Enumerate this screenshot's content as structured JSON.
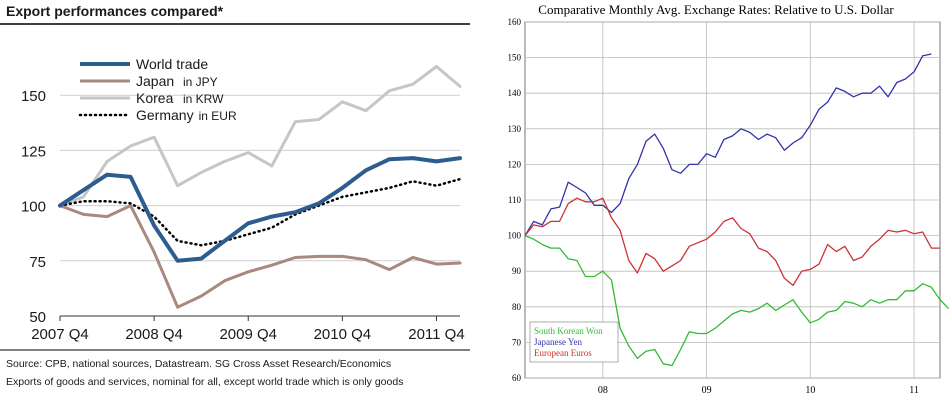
{
  "chart_data": [
    {
      "type": "line",
      "title": "Export performances compared*",
      "footnotes": [
        "Source: CPB, national sources, Datastream. SG Cross Asset Research/Economics",
        "Exports of goods and services, nominal for all, except world trade which is only goods"
      ],
      "x_tick_labels": [
        "2007 Q4",
        "2008 Q4",
        "2009 Q4",
        "2010 Q4",
        "2011 Q4"
      ],
      "x_tick_index": [
        0,
        4,
        8,
        12,
        16
      ],
      "y_ticks": [
        50,
        75,
        100,
        125,
        150
      ],
      "ylim": [
        50,
        175
      ],
      "xlim": [
        0,
        17
      ],
      "grid": "horizontal",
      "legend_position": "top-left",
      "series": [
        {
          "name": "World trade",
          "note": "",
          "color": "#2d5c8f",
          "style": "solid-thick",
          "values": [
            100,
            107,
            114,
            113,
            91,
            75,
            76,
            84,
            92,
            95,
            97,
            101,
            108,
            116,
            121,
            121.5,
            120,
            121.5
          ]
        },
        {
          "name": "Japan",
          "note": "in JPY",
          "color": "#a9887d",
          "style": "solid",
          "values": [
            100,
            96,
            95,
            100,
            79,
            54,
            59,
            66,
            70,
            73,
            76.5,
            77,
            77,
            75.5,
            71,
            76.5,
            73.5,
            74
          ]
        },
        {
          "name": "Korea",
          "note": "in KRW",
          "color": "#c4c6c8",
          "style": "solid",
          "values": [
            100,
            104,
            120,
            127,
            131,
            109,
            115,
            120,
            124,
            118,
            138,
            139,
            147,
            143,
            152,
            155,
            163,
            154
          ]
        },
        {
          "name": "Germany",
          "note": "in EUR",
          "color": "#000000",
          "style": "dotted",
          "values": [
            100,
            102,
            102,
            101,
            95,
            84,
            82,
            84,
            87,
            90,
            96,
            100,
            104,
            106,
            108,
            111,
            109,
            112
          ]
        }
      ]
    },
    {
      "type": "line",
      "title": "Comparative Monthly Avg. Exchange Rates: Relative to U.S. Dollar",
      "x_tick_labels": [
        "08",
        "09",
        "10",
        "11"
      ],
      "x_tick_index": [
        9,
        21,
        33,
        45
      ],
      "y_ticks": [
        60,
        70,
        80,
        90,
        100,
        110,
        120,
        130,
        140,
        150,
        160
      ],
      "ylim": [
        60,
        160
      ],
      "xlim": [
        0,
        48
      ],
      "grid": "both",
      "legend_position": "bottom-left",
      "series": [
        {
          "name": "South Korean Won",
          "color": "#33bb33",
          "values": [
            100,
            99,
            97.5,
            96.5,
            96.5,
            93.5,
            93,
            88.5,
            88.5,
            90,
            87.5,
            74,
            69,
            65.5,
            67.5,
            68,
            64,
            63.5,
            68,
            73,
            72.5,
            72.5,
            74,
            76,
            78,
            79,
            78.5,
            79.5,
            81,
            79,
            80.5,
            82,
            78.5,
            75.5,
            76.5,
            78.5,
            79,
            81.5,
            81,
            80,
            82,
            81,
            82,
            82,
            84.5,
            84.5,
            86.5,
            85.5,
            82,
            79.5
          ]
        },
        {
          "name": "Japanese Yen",
          "color": "#3333aa",
          "values": [
            100,
            104,
            103,
            107.5,
            108,
            115,
            113.5,
            112,
            108.5,
            108.5,
            106.5,
            109,
            116,
            120,
            126.5,
            128.5,
            124.5,
            118.5,
            117.5,
            120,
            120,
            123,
            122,
            127,
            128,
            130,
            129,
            127,
            128.5,
            127.5,
            124,
            126,
            127.5,
            131,
            135.5,
            137.5,
            141.5,
            140.5,
            139,
            140,
            140,
            142,
            139,
            143,
            144,
            146,
            150.5,
            151
          ]
        },
        {
          "name": "European Euros",
          "color": "#cc3333",
          "values": [
            100,
            103,
            102.5,
            104,
            104,
            109,
            110.5,
            109.5,
            109.5,
            110.5,
            105,
            101.5,
            93,
            89.5,
            95,
            93.5,
            90,
            91.5,
            93,
            97,
            98,
            99,
            101,
            104,
            105,
            102,
            100.5,
            96.5,
            95.5,
            93,
            88,
            86,
            90,
            90.5,
            92,
            97.5,
            95.5,
            97,
            93,
            94,
            97,
            99,
            101.5,
            101,
            101.5,
            100.5,
            101,
            96.5,
            96.5
          ]
        }
      ]
    }
  ]
}
